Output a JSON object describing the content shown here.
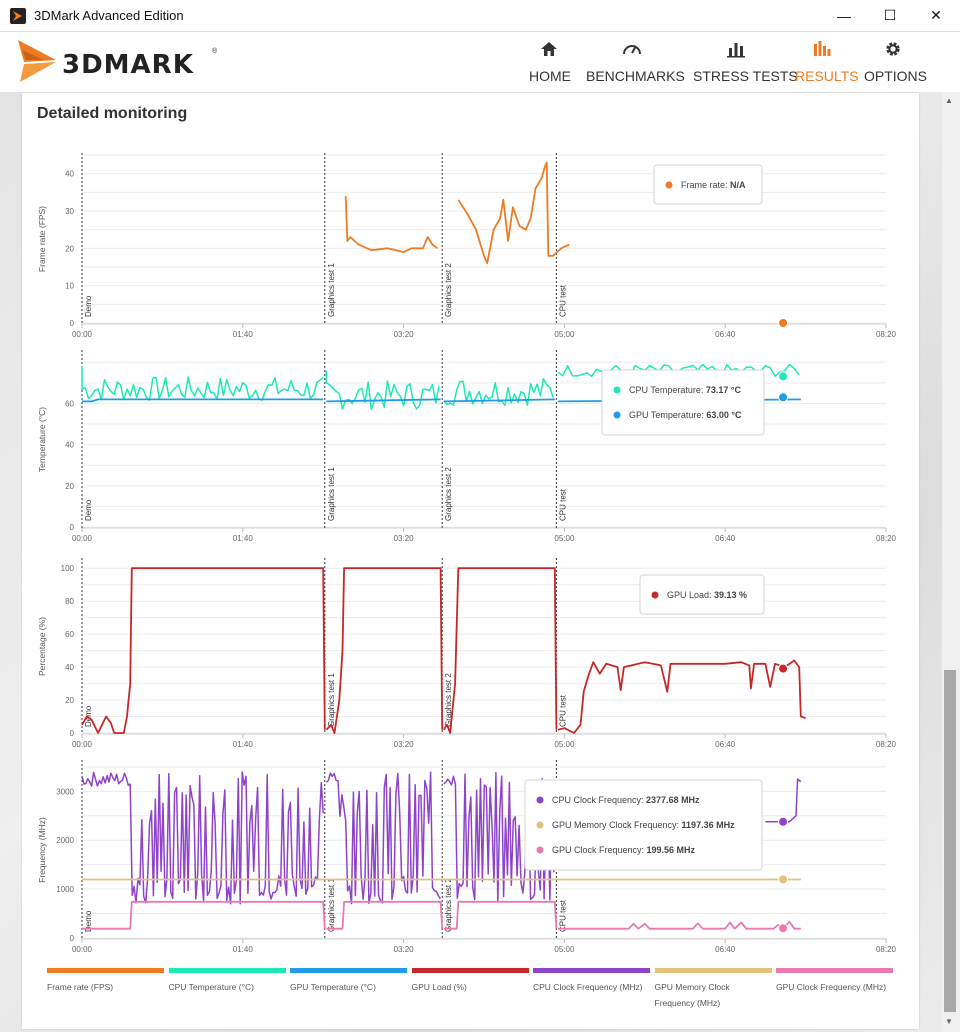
{
  "window": {
    "title": "3DMark Advanced Edition",
    "minimize": "—",
    "maximize": "☐",
    "close": "✕"
  },
  "brand": {
    "name": "3DMARK",
    "reg": "®"
  },
  "nav": [
    {
      "label": "HOME",
      "icon": "home-icon",
      "active": false
    },
    {
      "label": "BENCHMARKS",
      "icon": "gauge-icon",
      "active": false
    },
    {
      "label": "STRESS TESTS",
      "icon": "bars-icon",
      "active": false
    },
    {
      "label": "RESULTS",
      "icon": "results-icon",
      "active": true
    },
    {
      "label": "OPTIONS",
      "icon": "gear-icon",
      "active": false
    }
  ],
  "colors": {
    "accent": "#ee7b22",
    "frame_rate": "#ee7b22",
    "cpu_temp": "#1de9b6",
    "gpu_temp": "#1e9be9",
    "gpu_load": "#c62828",
    "cpu_clock": "#8e44c9",
    "gpu_mem_clock": "#e2c27b",
    "gpu_clock": "#ea79b0"
  },
  "page": {
    "heading": "Detailed monitoring"
  },
  "x_ticks": [
    "00:00",
    "01:40",
    "03:20",
    "05:00",
    "06:40",
    "08:20"
  ],
  "markers": [
    "Demo",
    "Graphics test 1",
    "Graphics test 2",
    "CPU test"
  ],
  "charts": {
    "fps": {
      "ylabel": "Frame rate (FPS)",
      "yticks": [
        "0",
        "10",
        "20",
        "30",
        "40"
      ],
      "tooltip": [
        {
          "label": "Frame rate: ",
          "value": "N/A"
        }
      ]
    },
    "temp": {
      "ylabel": "Temperature (°C)",
      "yticks": [
        "0",
        "20",
        "40",
        "60"
      ],
      "tooltip": [
        {
          "label": "CPU Temperature: ",
          "value": "73.17 °C"
        },
        {
          "label": "GPU Temperature: ",
          "value": "63.00 °C"
        }
      ]
    },
    "load": {
      "ylabel": "Percentage (%)",
      "yticks": [
        "0",
        "20",
        "40",
        "60",
        "80",
        "100"
      ],
      "tooltip": [
        {
          "label": "GPU Load: ",
          "value": "39.13 %"
        }
      ]
    },
    "freq": {
      "ylabel": "Frequency (MHz)",
      "yticks": [
        "0",
        "1000",
        "2000",
        "3000"
      ],
      "tooltip": [
        {
          "label": "CPU Clock Frequency: ",
          "value": "2377.68 MHz"
        },
        {
          "label": "GPU Memory Clock Frequency: ",
          "value": "1197.36 MHz"
        },
        {
          "label": "GPU Clock Frequency: ",
          "value": "199.56 MHz"
        }
      ]
    }
  },
  "legend": [
    {
      "label": "Frame rate (FPS)",
      "color": "#ee7b22"
    },
    {
      "label": "CPU Temperature (°C)",
      "color": "#1de9b6"
    },
    {
      "label": "GPU Temperature (°C)",
      "color": "#1e9be9"
    },
    {
      "label": "GPU Load (%)",
      "color": "#c62828"
    },
    {
      "label": "CPU Clock Frequency (MHz)",
      "color": "#8e44c9"
    },
    {
      "label": "GPU Memory Clock Frequency (MHz)",
      "color": "#e2c27b"
    },
    {
      "label": "GPU Clock Frequency (MHz)",
      "color": "#ea79b0"
    }
  ]
}
